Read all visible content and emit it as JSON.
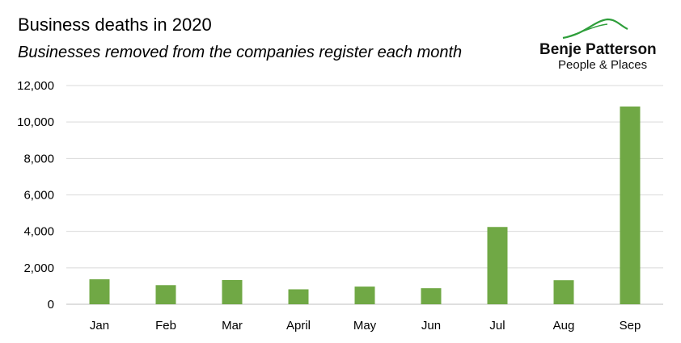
{
  "header": {
    "title": "Business deaths in 2020",
    "subtitle": "Businesses removed from the companies register each month"
  },
  "logo": {
    "name": "Benje Patterson",
    "tagline": "People & Places",
    "color": "#2e9e3a"
  },
  "chart_data": {
    "type": "bar",
    "title": "Business deaths in 2020",
    "subtitle": "Businesses removed from the companies register each month",
    "categories": [
      "Jan",
      "Feb",
      "Mar",
      "April",
      "May",
      "Jun",
      "Jul",
      "Aug",
      "Sep"
    ],
    "values": [
      1370,
      1050,
      1330,
      820,
      970,
      880,
      4240,
      1320,
      10850
    ],
    "y_ticks": [
      "0",
      "2,000",
      "4,000",
      "6,000",
      "8,000",
      "10,000",
      "12,000"
    ],
    "ylim": [
      0,
      12000
    ],
    "xlabel": "",
    "ylabel": "",
    "grid": true,
    "bar_color": "#70a845",
    "grid_color": "#d9d9d9",
    "axis_color": "#bfbfbf"
  }
}
